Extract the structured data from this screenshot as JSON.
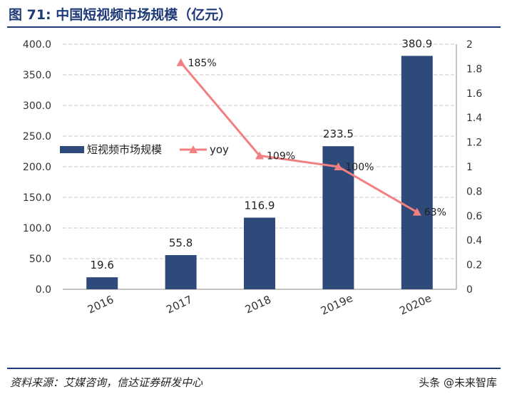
{
  "header": {
    "title": "图 71: 中国短视频市场规模（亿元）"
  },
  "footer": {
    "source": "资料来源：艾媒咨询，信达证券研发中心",
    "watermark": "头条 @未来智库"
  },
  "colors": {
    "bar": "#2e4a7a",
    "line": "#f28080",
    "grid": "#c8c8c8",
    "title": "#1f3a78"
  },
  "chart_data": {
    "type": "bar",
    "categories": [
      "2016",
      "2017",
      "2018",
      "2019e",
      "2020e"
    ],
    "series": [
      {
        "name": "短视频市场规模",
        "type": "bar",
        "axis": "left",
        "values": [
          19.6,
          55.8,
          116.9,
          233.5,
          380.9
        ],
        "labels": [
          "19.6",
          "55.8",
          "116.9",
          "233.5",
          "380.9"
        ]
      },
      {
        "name": "yoy",
        "type": "line",
        "axis": "right",
        "values": [
          null,
          1.85,
          1.09,
          1.0,
          0.63
        ],
        "labels": [
          "",
          "185%",
          "109%",
          "100%",
          "63%"
        ]
      }
    ],
    "y_left": {
      "lim": [
        0,
        400
      ],
      "ticks": [
        "0.0",
        "50.0",
        "100.0",
        "150.0",
        "200.0",
        "250.0",
        "300.0",
        "350.0",
        "400.0"
      ]
    },
    "y_right": {
      "lim": [
        0,
        2
      ],
      "ticks": [
        "0",
        "0.2",
        "0.4",
        "0.6",
        "0.8",
        "1",
        "1.2",
        "1.4",
        "1.6",
        "1.8",
        "2"
      ]
    },
    "grid": true,
    "legend": "upper-left"
  }
}
